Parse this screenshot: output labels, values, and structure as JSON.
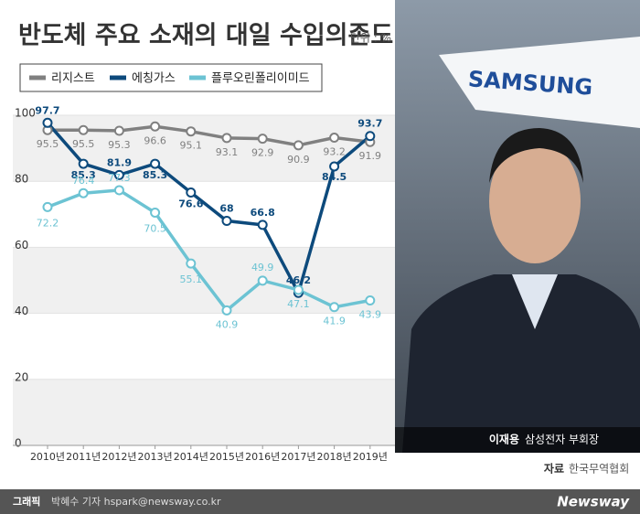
{
  "chart_data": {
    "type": "line",
    "title": "반도체 주요 소재의 대일 수입의존도",
    "categories": [
      "2010년",
      "2011년",
      "2012년",
      "2013년",
      "2014년",
      "2015년",
      "2016년",
      "2017년",
      "2018년",
      "2019년"
    ],
    "series": [
      {
        "name": "리지스트",
        "color": "#808080",
        "values": [
          95.5,
          95.5,
          95.3,
          96.6,
          95.1,
          93.1,
          92.9,
          90.9,
          93.2,
          91.9
        ]
      },
      {
        "name": "에칭가스",
        "color": "#0d4a7c",
        "values": [
          97.7,
          85.3,
          81.9,
          85.3,
          76.6,
          68,
          66.8,
          46.2,
          84.5,
          93.7
        ]
      },
      {
        "name": "플루오린폴리이미드",
        "color": "#6cc3d3",
        "values": [
          72.2,
          76.4,
          77.3,
          70.5,
          55.1,
          40.9,
          49.9,
          47.1,
          41.9,
          43.9
        ]
      }
    ],
    "ylim": [
      0,
      100
    ],
    "yticks": [
      0,
      20,
      40,
      60,
      80,
      100
    ],
    "grid": true
  },
  "unit": "단위 : %",
  "photo": {
    "flag_text": "SAMSUNG",
    "caption_name": "이재용",
    "caption_title": "삼성전자 부회장"
  },
  "source": {
    "label": "자료",
    "text": "한국무역협회"
  },
  "footer": {
    "label": "그래픽",
    "credit": "박혜수 기자 hspark@newsway.co.kr",
    "brand": "Newsway"
  }
}
